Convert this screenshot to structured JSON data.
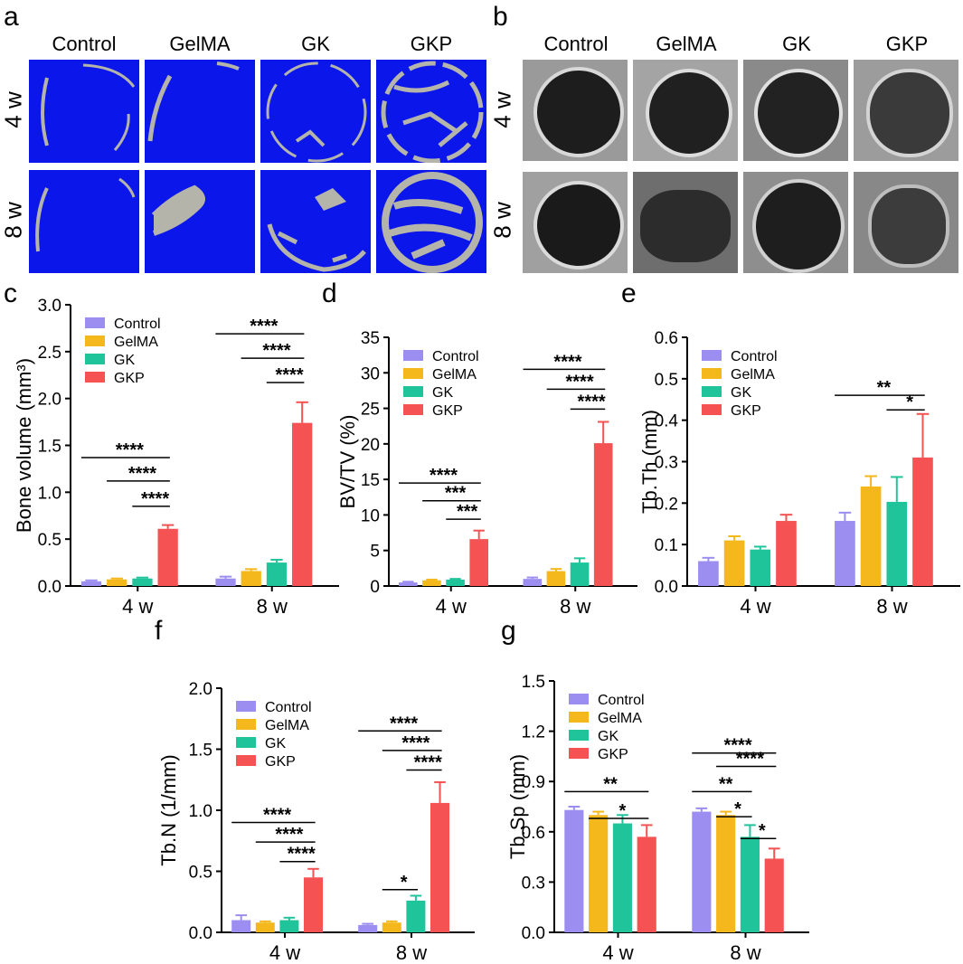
{
  "panels": {
    "a": {
      "label": "a",
      "columns": [
        "Control",
        "GelMA",
        "GK",
        "GKP"
      ],
      "rows": [
        "4 w",
        "8 w"
      ],
      "background_color": "#0b16ea",
      "bone_color": "#b4b4aa"
    },
    "b": {
      "label": "b",
      "columns": [
        "Control",
        "GelMA",
        "GK",
        "GKP"
      ],
      "rows": [
        "4 w",
        "8 w"
      ]
    }
  },
  "colors": {
    "Control": "#9b8ef0",
    "GelMA": "#f5b81c",
    "GK": "#20c49a",
    "GKP": "#f55353"
  },
  "chart_data": [
    {
      "id": "c",
      "panel_label": "c",
      "type": "bar",
      "ylabel": "Bone volume (mm³)",
      "ylim": [
        0,
        3.0
      ],
      "yticks": [
        "0.0",
        "0.5",
        "1.0",
        "1.5",
        "2.0",
        "2.5",
        "3.0"
      ],
      "categories": [
        "4 w",
        "8 w"
      ],
      "series": [
        {
          "name": "Control",
          "values": [
            0.05,
            0.08
          ],
          "errors": [
            0.01,
            0.02
          ]
        },
        {
          "name": "GelMA",
          "values": [
            0.07,
            0.16
          ],
          "errors": [
            0.01,
            0.02
          ]
        },
        {
          "name": "GK",
          "values": [
            0.08,
            0.25
          ],
          "errors": [
            0.01,
            0.03
          ]
        },
        {
          "name": "GKP",
          "values": [
            0.61,
            1.74
          ],
          "errors": [
            0.04,
            0.22
          ]
        }
      ],
      "significance": [
        {
          "group": 0,
          "from": 0,
          "to": 3,
          "y": 1.37,
          "text": "****"
        },
        {
          "group": 0,
          "from": 1,
          "to": 3,
          "y": 1.12,
          "text": "****"
        },
        {
          "group": 0,
          "from": 2,
          "to": 3,
          "y": 0.85,
          "text": "****"
        },
        {
          "group": 1,
          "from": 0,
          "to": 3,
          "y": 2.69,
          "text": "****"
        },
        {
          "group": 1,
          "from": 1,
          "to": 3,
          "y": 2.43,
          "text": "****"
        },
        {
          "group": 1,
          "from": 2,
          "to": 3,
          "y": 2.17,
          "text": "****"
        }
      ]
    },
    {
      "id": "d",
      "panel_label": "d",
      "type": "bar",
      "ylabel": "BV/TV (%)",
      "ylim": [
        0,
        35
      ],
      "yticks": [
        "0",
        "5",
        "10",
        "15",
        "20",
        "25",
        "30",
        "35"
      ],
      "categories": [
        "4 w",
        "8 w"
      ],
      "series": [
        {
          "name": "Control",
          "values": [
            0.5,
            1.0
          ],
          "errors": [
            0.1,
            0.2
          ]
        },
        {
          "name": "GelMA",
          "values": [
            0.8,
            2.1
          ],
          "errors": [
            0.1,
            0.3
          ]
        },
        {
          "name": "GK",
          "values": [
            0.9,
            3.3
          ],
          "errors": [
            0.1,
            0.6
          ]
        },
        {
          "name": "GKP",
          "values": [
            6.6,
            20.1
          ],
          "errors": [
            1.2,
            3.0
          ]
        }
      ],
      "significance": [
        {
          "group": 0,
          "from": 0,
          "to": 3,
          "y": 14.5,
          "text": "****"
        },
        {
          "group": 0,
          "from": 1,
          "to": 3,
          "y": 12.0,
          "text": "***"
        },
        {
          "group": 0,
          "from": 2,
          "to": 3,
          "y": 9.4,
          "text": "***"
        },
        {
          "group": 1,
          "from": 0,
          "to": 3,
          "y": 30.5,
          "text": "****"
        },
        {
          "group": 1,
          "from": 1,
          "to": 3,
          "y": 27.7,
          "text": "****"
        },
        {
          "group": 1,
          "from": 2,
          "to": 3,
          "y": 24.9,
          "text": "****"
        }
      ]
    },
    {
      "id": "e",
      "panel_label": "e",
      "type": "bar",
      "ylabel": "Tb.Th (mm)",
      "ylim": [
        0,
        0.6
      ],
      "yticks": [
        "0.0",
        "0.1",
        "0.2",
        "0.3",
        "0.4",
        "0.5",
        "0.6"
      ],
      "categories": [
        "4 w",
        "8 w"
      ],
      "series": [
        {
          "name": "Control",
          "values": [
            0.06,
            0.157
          ],
          "errors": [
            0.008,
            0.02
          ]
        },
        {
          "name": "GelMA",
          "values": [
            0.11,
            0.24
          ],
          "errors": [
            0.01,
            0.025
          ]
        },
        {
          "name": "GK",
          "values": [
            0.088,
            0.203
          ],
          "errors": [
            0.007,
            0.06
          ]
        },
        {
          "name": "GKP",
          "values": [
            0.157,
            0.31
          ],
          "errors": [
            0.015,
            0.105
          ]
        }
      ],
      "significance": [
        {
          "group": 1,
          "from": 0,
          "to": 3,
          "y": 0.46,
          "text": "**"
        },
        {
          "group": 1,
          "from": 2,
          "to": 3,
          "y": 0.425,
          "text": "*"
        }
      ]
    },
    {
      "id": "f",
      "panel_label": "f",
      "type": "bar",
      "ylabel": "Tb.N (1/mm)",
      "ylim": [
        0,
        2.0
      ],
      "yticks": [
        "0.0",
        "0.5",
        "1.0",
        "1.5",
        "2.0"
      ],
      "categories": [
        "4 w",
        "8 w"
      ],
      "series": [
        {
          "name": "Control",
          "values": [
            0.1,
            0.06
          ],
          "errors": [
            0.04,
            0.01
          ]
        },
        {
          "name": "GelMA",
          "values": [
            0.08,
            0.08
          ],
          "errors": [
            0.01,
            0.01
          ]
        },
        {
          "name": "GK",
          "values": [
            0.1,
            0.26
          ],
          "errors": [
            0.02,
            0.04
          ]
        },
        {
          "name": "GKP",
          "values": [
            0.45,
            1.06
          ],
          "errors": [
            0.07,
            0.17
          ]
        }
      ],
      "significance": [
        {
          "group": 0,
          "from": 0,
          "to": 3,
          "y": 0.9,
          "text": "****"
        },
        {
          "group": 0,
          "from": 1,
          "to": 3,
          "y": 0.74,
          "text": "****"
        },
        {
          "group": 0,
          "from": 2,
          "to": 3,
          "y": 0.58,
          "text": "****"
        },
        {
          "group": 1,
          "from": 1,
          "to": 2,
          "y": 0.35,
          "text": "*"
        },
        {
          "group": 1,
          "from": 0,
          "to": 3,
          "y": 1.65,
          "text": "****"
        },
        {
          "group": 1,
          "from": 1,
          "to": 3,
          "y": 1.49,
          "text": "****"
        },
        {
          "group": 1,
          "from": 2,
          "to": 3,
          "y": 1.33,
          "text": "****"
        }
      ]
    },
    {
      "id": "g",
      "panel_label": "g",
      "type": "bar",
      "ylabel": "Tb.Sp (mm)",
      "ylim": [
        0,
        1.5
      ],
      "yticks": [
        "0.0",
        "0.3",
        "0.6",
        "0.9",
        "1.2",
        "1.5"
      ],
      "categories": [
        "4 w",
        "8 w"
      ],
      "series": [
        {
          "name": "Control",
          "values": [
            0.73,
            0.72
          ],
          "errors": [
            0.02,
            0.02
          ]
        },
        {
          "name": "GelMA",
          "values": [
            0.7,
            0.7
          ],
          "errors": [
            0.02,
            0.02
          ]
        },
        {
          "name": "GK",
          "values": [
            0.65,
            0.57
          ],
          "errors": [
            0.05,
            0.07
          ]
        },
        {
          "name": "GKP",
          "values": [
            0.57,
            0.44
          ],
          "errors": [
            0.07,
            0.06
          ]
        }
      ],
      "significance": [
        {
          "group": 0,
          "from": 0,
          "to": 3,
          "y": 0.84,
          "text": "**"
        },
        {
          "group": 0,
          "from": 1,
          "to": 3,
          "y": 0.68,
          "text": "*"
        },
        {
          "group": 1,
          "from": 0,
          "to": 3,
          "y": 1.07,
          "text": "****"
        },
        {
          "group": 1,
          "from": 1,
          "to": 3,
          "y": 0.99,
          "text": "****"
        },
        {
          "group": 1,
          "from": 0,
          "to": 2,
          "y": 0.84,
          "text": "**"
        },
        {
          "group": 1,
          "from": 1,
          "to": 2,
          "y": 0.69,
          "text": "*"
        },
        {
          "group": 1,
          "from": 2,
          "to": 3,
          "y": 0.56,
          "text": "*"
        }
      ]
    }
  ]
}
